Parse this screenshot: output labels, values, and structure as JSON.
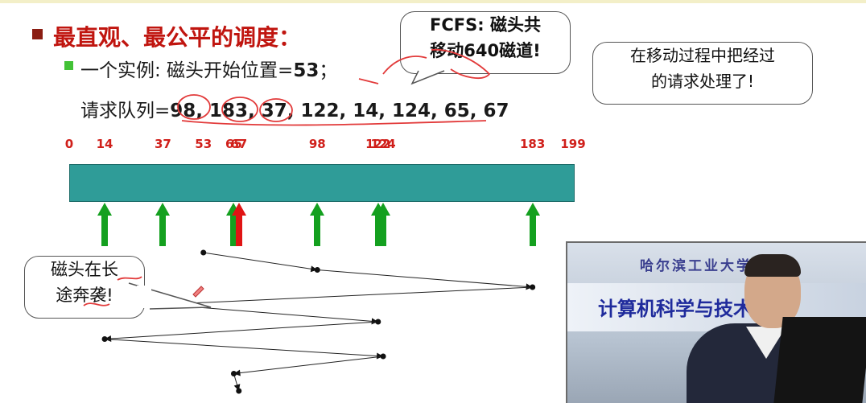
{
  "heading": "最直观、最公平的调度：",
  "example_prefix": "一个实例: 磁头开始位置=",
  "example_value": "53",
  "example_suffix": "；",
  "queue_prefix": "请求队列=",
  "queue_values": "98, 183, 37, 122, 14, 124, 65, 67",
  "callouts": {
    "fcfs_line1": "FCFS: 磁头共",
    "fcfs_line2": "移动640磁道!",
    "process_line1": "在移动过程中把经过",
    "process_line2": "的请求处理了!",
    "seek_line1": "磁头在长",
    "seek_line2": "途奔袭!"
  },
  "track_scale": {
    "min": 0,
    "max": 199,
    "ticks": [
      "0",
      "14",
      "37",
      "53",
      "65",
      "67",
      "98",
      "122",
      "124",
      "183",
      "199"
    ]
  },
  "request_arrows": [
    {
      "cylinder": 14,
      "color": "green"
    },
    {
      "cylinder": 37,
      "color": "green"
    },
    {
      "cylinder": 65,
      "color": "green"
    },
    {
      "cylinder": 67,
      "color": "red"
    },
    {
      "cylinder": 98,
      "color": "green"
    },
    {
      "cylinder": 122,
      "color": "green"
    },
    {
      "cylinder": 124,
      "color": "green"
    },
    {
      "cylinder": 183,
      "color": "green"
    }
  ],
  "head_movement_sequence": [
    53,
    98,
    183,
    37,
    122,
    14,
    124,
    65,
    67
  ],
  "colors": {
    "heading": "#c0150f",
    "tick_labels": "#d01f1a",
    "track": "#2f9c98",
    "arrow_green": "#14a01f",
    "arrow_red": "#e01414"
  },
  "video": {
    "school_name": "哈尔滨工业大学",
    "college_name": "计算机科学与技术学院"
  }
}
